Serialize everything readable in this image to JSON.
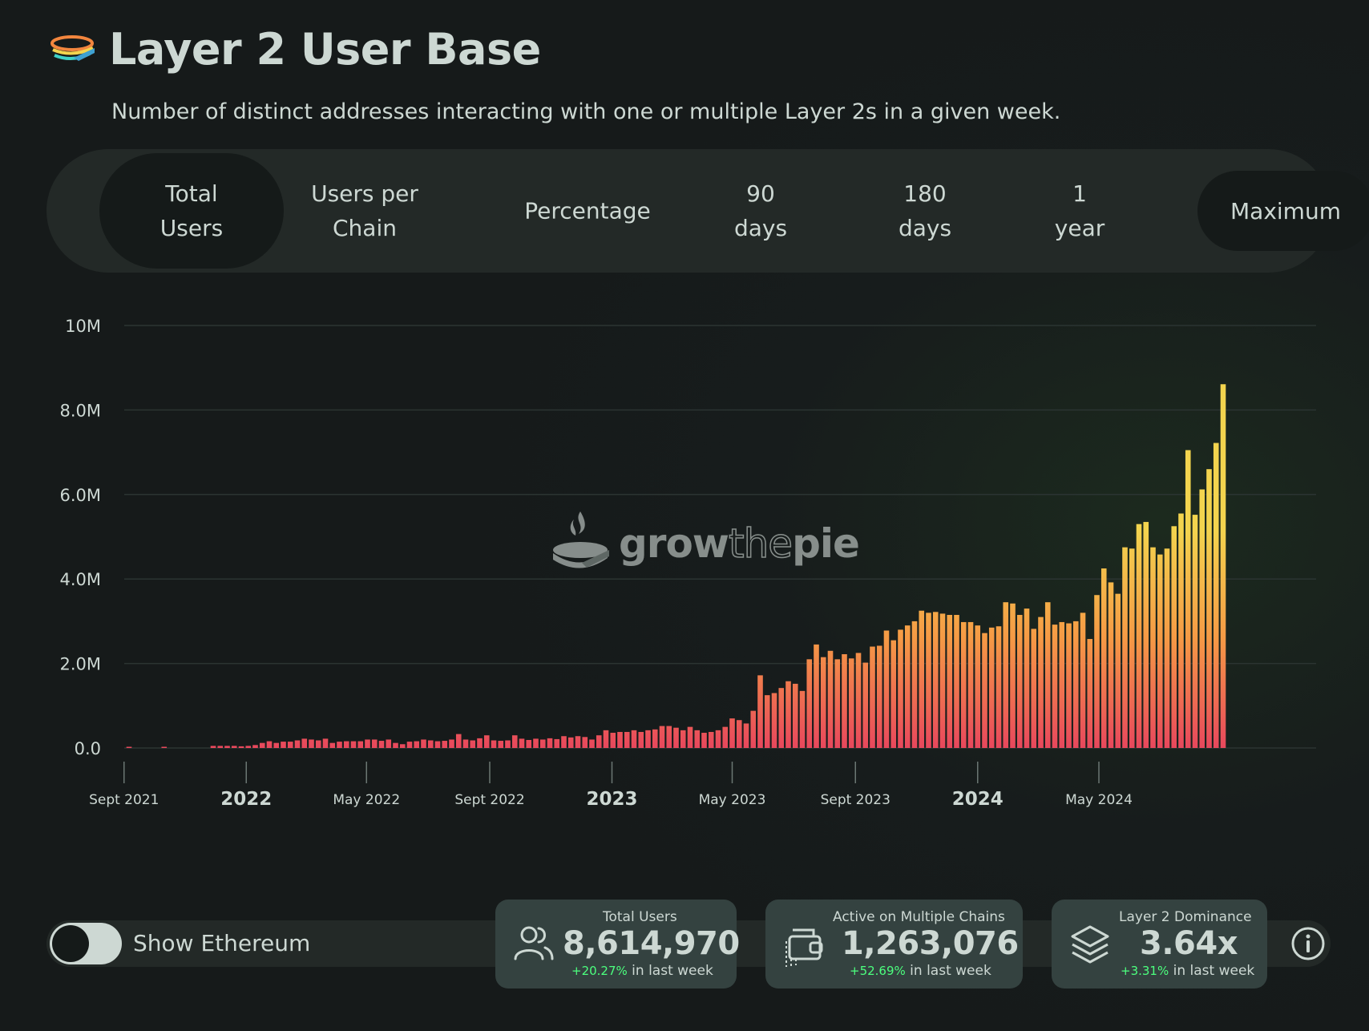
{
  "header": {
    "title": "Layer 2 User Base",
    "subtitle": "Number of distinct addresses interacting with one or multiple Layer 2s in a given week.",
    "logo_icon": "growthepie-logo-icon"
  },
  "tabs": [
    {
      "label": "Total\nUsers",
      "active": true
    },
    {
      "label": "Users per\nChain",
      "active": false
    },
    {
      "label": "Percentage",
      "active": false
    },
    {
      "label": "90\ndays",
      "active": false
    },
    {
      "label": "180\ndays",
      "active": false
    },
    {
      "label": "1\nyear",
      "active": false
    },
    {
      "label": "Maximum",
      "active": true
    }
  ],
  "watermark": {
    "part1": "grow",
    "part2": "the",
    "part3": "pie"
  },
  "colors": {
    "bar_top": "#f3d44e",
    "bar_mid": "#f59a45",
    "bar_bottom": "#e8485c",
    "text": "#cdd8d3",
    "positive": "#4cff7e"
  },
  "chart_data": {
    "type": "bar",
    "title": "",
    "xlabel": "",
    "ylabel": "",
    "ylim": [
      0,
      10000000
    ],
    "y_ticks": [
      "0.0",
      "2.0M",
      "4.0M",
      "6.0M",
      "8.0M",
      "10M"
    ],
    "x_ticks": [
      {
        "label": "Sept 2021",
        "bold": false
      },
      {
        "label": "2022",
        "bold": true
      },
      {
        "label": "May 2022",
        "bold": false
      },
      {
        "label": "Sept 2022",
        "bold": false
      },
      {
        "label": "2023",
        "bold": true
      },
      {
        "label": "May 2023",
        "bold": false
      },
      {
        "label": "Sept 2023",
        "bold": false
      },
      {
        "label": "2024",
        "bold": true
      },
      {
        "label": "May 2024",
        "bold": false
      }
    ],
    "grid": true,
    "x_start": "2021-09-06",
    "x_interval": "weekly",
    "series": [
      {
        "values": [
          0.01,
          0,
          0,
          0,
          0,
          0.01,
          0,
          0,
          0,
          0,
          0,
          0,
          0.05,
          0.05,
          0.05,
          0.05,
          0.04,
          0.05,
          0.07,
          0.12,
          0.16,
          0.12,
          0.15,
          0.15,
          0.18,
          0.22,
          0.2,
          0.18,
          0.22,
          0.12,
          0.15,
          0.16,
          0.16,
          0.16,
          0.2,
          0.2,
          0.17,
          0.2,
          0.12,
          0.09,
          0.15,
          0.16,
          0.2,
          0.18,
          0.16,
          0.17,
          0.2,
          0.33,
          0.2,
          0.18,
          0.23,
          0.3,
          0.18,
          0.17,
          0.18,
          0.3,
          0.22,
          0.19,
          0.22,
          0.2,
          0.23,
          0.21,
          0.28,
          0.25,
          0.28,
          0.26,
          0.2,
          0.3,
          0.42,
          0.36,
          0.38,
          0.38,
          0.42,
          0.38,
          0.42,
          0.44,
          0.52,
          0.52,
          0.48,
          0.42,
          0.5,
          0.42,
          0.36,
          0.38,
          0.42,
          0.5,
          0.7,
          0.66,
          0.58,
          0.88,
          1.72,
          1.25,
          1.3,
          1.42,
          1.58,
          1.52,
          1.35,
          2.1,
          2.45,
          2.15,
          2.3,
          2.1,
          2.22,
          2.12,
          2.25,
          2.02,
          2.4,
          2.42,
          2.78,
          2.55,
          2.8,
          2.9,
          3.0,
          3.25,
          3.2,
          3.22,
          3.18,
          3.15,
          3.15,
          2.98,
          2.98,
          2.9,
          2.72,
          2.85,
          2.88,
          3.45,
          3.42,
          3.15,
          3.3,
          2.82,
          3.1,
          3.45,
          2.92,
          2.98,
          2.95,
          3.0,
          3.2,
          2.58,
          3.62,
          4.25,
          3.92,
          3.65,
          4.75,
          4.72,
          5.3,
          5.35,
          4.75,
          4.58,
          4.72,
          5.25,
          5.55,
          7.05,
          5.52,
          6.12,
          6.6,
          7.22,
          8.61
        ]
      }
    ]
  },
  "toggle": {
    "label": "Show Ethereum",
    "on": false
  },
  "cards": [
    {
      "label": "Total Users",
      "value": "8,614,970",
      "change": "+20.27%",
      "change_suffix": "in last week",
      "icon": "users-icon"
    },
    {
      "label": "Active on Multiple Chains",
      "value": "1,263,076",
      "change": "+52.69%",
      "change_suffix": "in last week",
      "icon": "wallet-multichain-icon"
    },
    {
      "label": "Layer 2 Dominance",
      "value": "3.64x",
      "change": "+3.31%",
      "change_suffix": "in last week",
      "icon": "layers-icon"
    }
  ],
  "info_icon": "info-icon"
}
